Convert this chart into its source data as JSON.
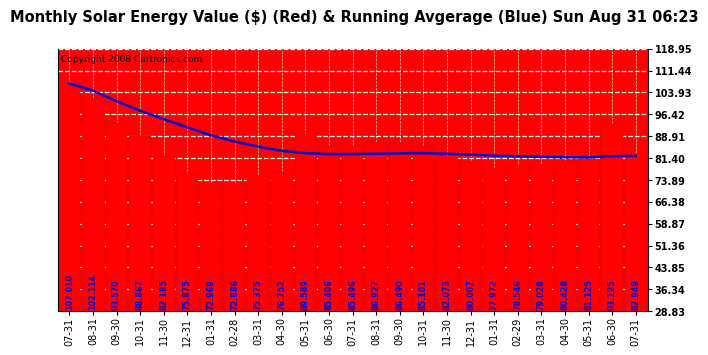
{
  "title": "Monthly Solar Energy Value ($) (Red) & Running Avgerage (Blue) Sun Aug 31 06:23",
  "copyright": "Copyright 2008 Cartronics.com",
  "categories": [
    "07-31",
    "08-31",
    "09-30",
    "10-31",
    "11-30",
    "12-31",
    "01-31",
    "02-28",
    "03-31",
    "04-30",
    "05-31",
    "06-30",
    "07-31",
    "08-31",
    "09-30",
    "10-31",
    "11-30",
    "12-31",
    "01-31",
    "02-29",
    "03-31",
    "04-30",
    "05-31",
    "06-30",
    "07-31"
  ],
  "values": [
    107.01,
    102.114,
    93.57,
    88.867,
    82.185,
    75.875,
    72.969,
    72.886,
    75.375,
    76.752,
    89.589,
    85.406,
    85.496,
    86.927,
    86.49,
    85.101,
    82.073,
    80.007,
    77.972,
    78.546,
    79.028,
    80.428,
    81.125,
    93.125,
    82.949
  ],
  "running_avg": [
    107.01,
    104.562,
    100.898,
    97.64,
    94.749,
    91.937,
    89.243,
    87.072,
    85.339,
    83.873,
    83.118,
    82.761,
    82.78,
    82.894,
    83.038,
    83.123,
    82.904,
    82.607,
    82.242,
    82.013,
    81.806,
    81.698,
    81.631,
    82.063,
    82.149
  ],
  "bar_color": "#ff0000",
  "line_color": "#0000cc",
  "label_color": "#0000cc",
  "background_color": "#ffffff",
  "plot_bg_color": "#ff0000",
  "grid_color": "#ffffff",
  "ymin": 28.83,
  "ymax": 118.95,
  "yticks": [
    28.83,
    36.34,
    43.85,
    51.36,
    58.87,
    66.38,
    73.89,
    81.4,
    88.91,
    96.42,
    103.93,
    111.44,
    118.95
  ],
  "title_fontsize": 10.5,
  "copyright_fontsize": 6.5,
  "tick_fontsize": 7,
  "label_fontsize": 5.8
}
